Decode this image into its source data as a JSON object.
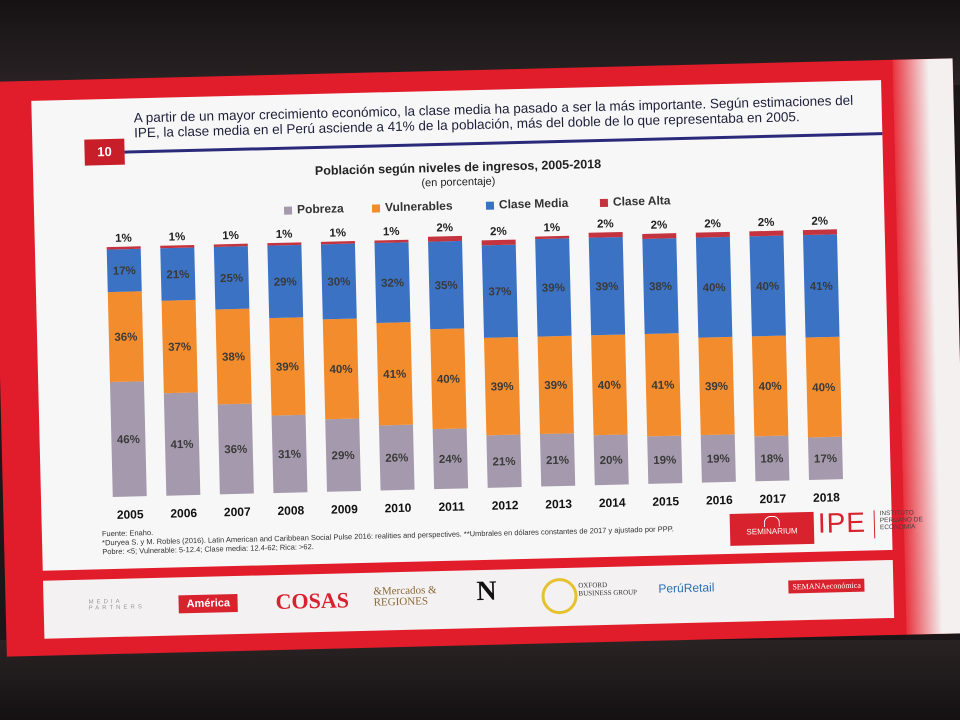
{
  "slide": {
    "number": "10",
    "headline": "A partir de un mayor crecimiento económico, la clase media ha pasado a ser la más importante. Según estimaciones del IPE, la clase media en el Perú asciende a 41% de la población, más del doble de lo que representaba en 2005.",
    "footnotes": [
      "Fuente: Enaho.",
      "*Duryea S. y M. Robles (2016). Latin American and Caribbean Social Pulse 2016: realities and perspectives. **Umbrales en dólares constantes de 2017 y ajustado por PPP.",
      "Pobre: <5; Vulnerable: 5-12.4; Clase media: 12.4-62; Rica: >62."
    ]
  },
  "chart_data": {
    "type": "bar",
    "stacked": true,
    "title": "Población según niveles de ingresos, 2005-2018",
    "subtitle": "(en porcentaje)",
    "categories": [
      "2005",
      "2006",
      "2007",
      "2008",
      "2009",
      "2010",
      "2011",
      "2012",
      "2013",
      "2014",
      "2015",
      "2016",
      "2017",
      "2018"
    ],
    "series": [
      {
        "name": "Pobreza",
        "color": "#a59aad",
        "values": [
          46,
          41,
          36,
          31,
          29,
          26,
          24,
          21,
          21,
          20,
          19,
          19,
          18,
          17
        ]
      },
      {
        "name": "Vulnerables",
        "color": "#f28c2c",
        "values": [
          36,
          37,
          38,
          39,
          40,
          41,
          40,
          39,
          39,
          40,
          41,
          39,
          40,
          40
        ]
      },
      {
        "name": "Clase Media",
        "color": "#3b72c4",
        "values": [
          17,
          21,
          25,
          29,
          30,
          32,
          35,
          37,
          39,
          39,
          38,
          40,
          40,
          41
        ]
      },
      {
        "name": "Clase Alta",
        "color": "#c4343f",
        "values": [
          1,
          1,
          1,
          1,
          1,
          1,
          2,
          2,
          1,
          2,
          2,
          2,
          2,
          2
        ]
      }
    ],
    "value_suffix": "%",
    "ylim": [
      0,
      100
    ],
    "legend_position": "top",
    "grid": false
  },
  "logos": {
    "seminarium": "SEMINARIUM",
    "ipe": "IPE",
    "ipe_sub": "INSTITUTO PERUANO DE ECONOMÍA"
  },
  "sponsors": [
    "MEDIA PARTNERS",
    "América",
    "COSAS",
    "&Mercados & REGIONES",
    "N",
    "OXFORD BUSINESS GROUP",
    "PerúRetail",
    "SEMANAeconómica"
  ]
}
